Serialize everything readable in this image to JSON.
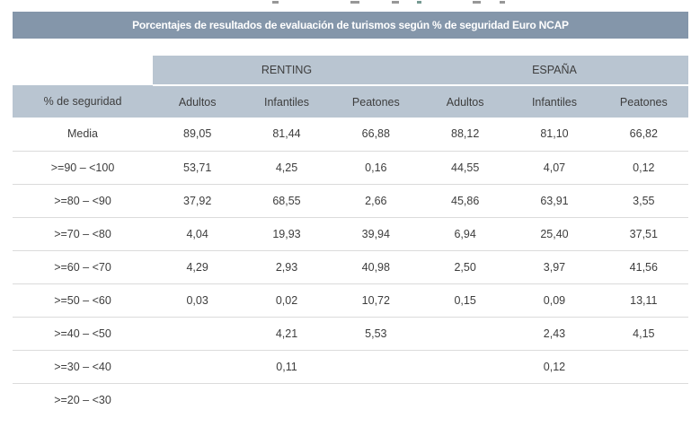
{
  "chart_data": {
    "type": "table",
    "title": "Porcentajes de resultados de evaluación de turismos según % de seguridad Euro NCAP",
    "row_header_label": "% de seguridad",
    "column_groups": [
      "RENTING",
      "ESPAÑA"
    ],
    "columns": [
      "Adultos",
      "Infantiles",
      "Peatones",
      "Adultos",
      "Infantiles",
      "Peatones"
    ],
    "rows": [
      {
        "label": "Media",
        "values": [
          "89,05",
          "81,44",
          "66,88",
          "88,12",
          "81,10",
          "66,82"
        ]
      },
      {
        "label": ">=90 – <100",
        "values": [
          "53,71",
          "4,25",
          "0,16",
          "44,55",
          "4,07",
          "0,12"
        ]
      },
      {
        "label": ">=80 – <90",
        "values": [
          "37,92",
          "68,55",
          "2,66",
          "45,86",
          "63,91",
          "3,55"
        ]
      },
      {
        "label": ">=70 – <80",
        "values": [
          "4,04",
          "19,93",
          "39,94",
          "6,94",
          "25,40",
          "37,51"
        ]
      },
      {
        "label": ">=60 – <70",
        "values": [
          "4,29",
          "2,93",
          "40,98",
          "2,50",
          "3,97",
          "41,56"
        ]
      },
      {
        "label": ">=50 – <60",
        "values": [
          "0,03",
          "0,02",
          "10,72",
          "0,15",
          "0,09",
          "13,11"
        ]
      },
      {
        "label": ">=40 – <50",
        "values": [
          "",
          "4,21",
          "5,53",
          "",
          "2,43",
          "4,15"
        ]
      },
      {
        "label": ">=30 – <40",
        "values": [
          "",
          "0,11",
          "",
          "",
          "0,12",
          ""
        ]
      },
      {
        "label": ">=20 – <30",
        "values": [
          "",
          "",
          "",
          "",
          "",
          ""
        ]
      }
    ],
    "layout_hints": {
      "value_separator": "decimal comma",
      "empty_cells_render_blank": true,
      "grid": "horizontal row borders only"
    }
  },
  "colors": {
    "title_bar_bg": "#8496AA",
    "header_bg": "#B9C5D1",
    "title_text": "#FFFFFF",
    "body_text": "#3D3D3D",
    "row_border": "#DBDBDB",
    "page_bg": "#FFFFFF"
  }
}
